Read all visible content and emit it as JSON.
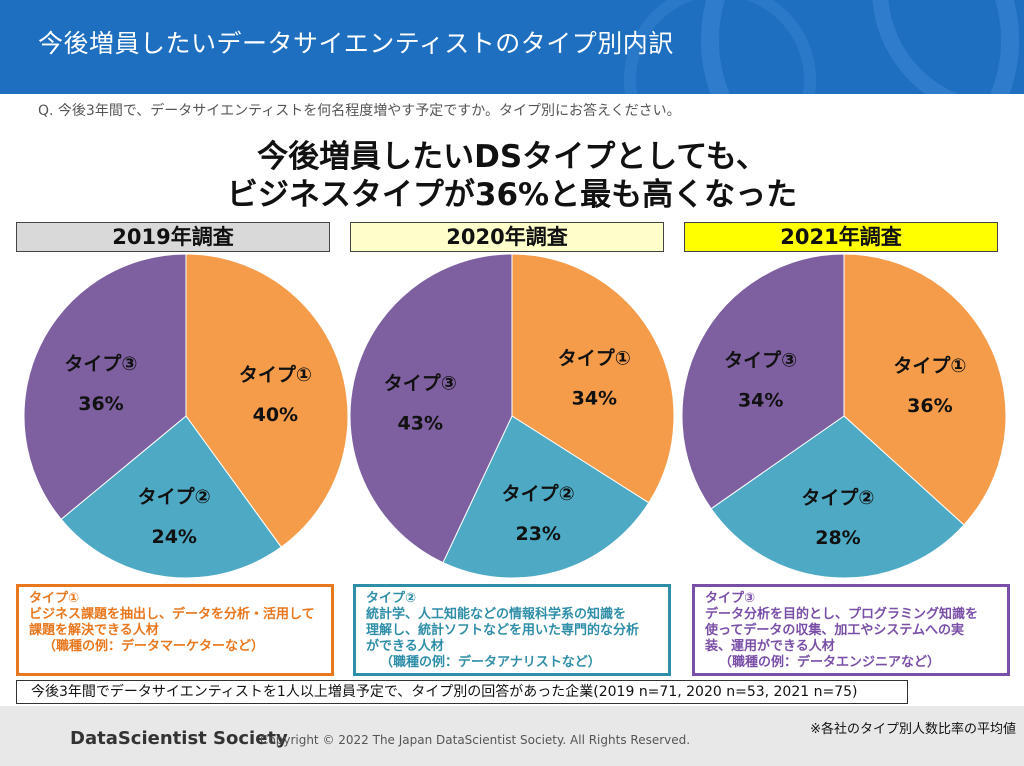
{
  "header": {
    "title": "今後増員したいデータサイエンティストのタイプ別内訳"
  },
  "question": "Q. 今後3年間で、データサイエンティストを何名程度増やす予定ですか。タイプ別にお答えください。",
  "headline": {
    "line1": "今後増員したいDSタイプとしても、",
    "line2": "ビジネスタイプが36%と最も高くなった"
  },
  "colors": {
    "type1": "#f59c4b",
    "type2": "#4eaac4",
    "type3": "#7e60a0",
    "header": "#1e6fc0"
  },
  "chart_data": [
    {
      "type": "pie",
      "title": "2019年調査",
      "title_bg": "#d9d9d9",
      "labels": [
        "タイプ①",
        "タイプ②",
        "タイプ③"
      ],
      "values": [
        40,
        24,
        36
      ],
      "value_labels": [
        "40%",
        "24%",
        "36%"
      ]
    },
    {
      "type": "pie",
      "title": "2020年調査",
      "title_bg": "#ffffcc",
      "labels": [
        "タイプ①",
        "タイプ②",
        "タイプ③"
      ],
      "values": [
        34,
        23,
        43
      ],
      "value_labels": [
        "34%",
        "23%",
        "43%"
      ]
    },
    {
      "type": "pie",
      "title": "2021年調査",
      "title_bg": "#ffff00",
      "labels": [
        "タイプ①",
        "タイプ②",
        "タイプ③"
      ],
      "values": [
        36,
        28,
        34
      ],
      "value_labels": [
        "36%",
        "28%",
        "34%"
      ]
    }
  ],
  "descriptions": [
    {
      "title": "タイプ①",
      "lines": [
        "ビジネス課題を抽出し、データを分析・活用して",
        "課題を解決できる人材"
      ],
      "example": "（職種の例：データマーケターなど）",
      "color": "#e8771e"
    },
    {
      "title": "タイプ②",
      "lines": [
        "統計学、人工知能などの情報科学系の知識を",
        "理解し、統計ソフトなどを用いた専門的な分析",
        "ができる人材"
      ],
      "example": "（職種の例：データアナリストなど）",
      "color": "#2f8ea8"
    },
    {
      "title": "タイプ③",
      "lines": [
        "データ分析を目的とし、プログラミング知識を",
        "使ってデータの収集、加工やシステムへの実",
        "装、運用ができる人材"
      ],
      "example": "（職種の例：データエンジニアなど）",
      "color": "#7a4fa8"
    }
  ],
  "note": "今後3年間でデータサイエンティストを1人以上増員予定で、タイプ別の回答があった企業(2019 n=71, 2020 n=53, 2021 n=75)",
  "footer": {
    "logo": "DataScientist Society",
    "copyright": "Copyright © 2022 The Japan DataScientist Society. All Rights Reserved.",
    "footnote": "※各社のタイプ別人数比率の平均値"
  }
}
